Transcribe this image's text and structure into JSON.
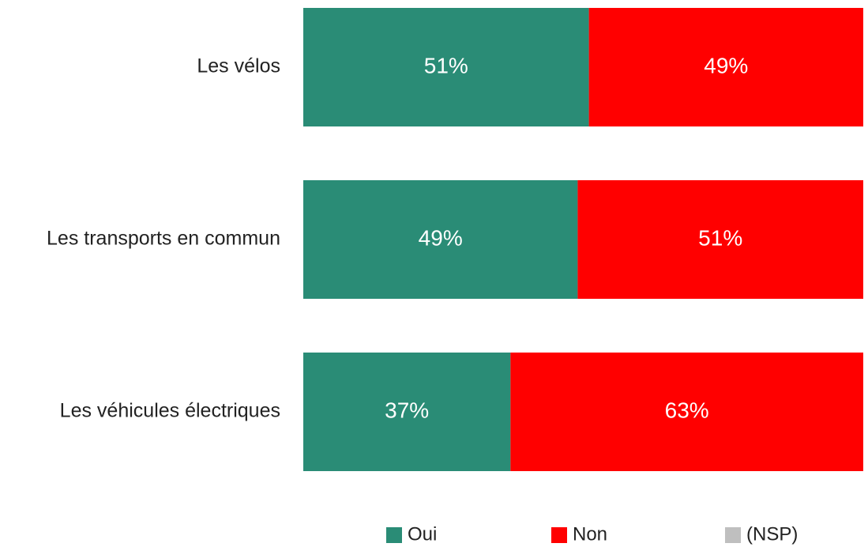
{
  "chart_data": {
    "type": "stacked-bar-horizontal",
    "categories": [
      "Les vélos",
      "Les transports en commun",
      "Les véhicules électriques"
    ],
    "series": [
      {
        "name": "Oui",
        "color": "#2a8c76",
        "values": [
          51,
          49,
          37
        ],
        "value_labels": [
          "51%",
          "49%",
          "37%"
        ]
      },
      {
        "name": "Non",
        "color": "#ff0000",
        "values": [
          49,
          51,
          63
        ],
        "value_labels": [
          "49%",
          "51%",
          "63%"
        ]
      },
      {
        "name": "(NSP)",
        "color": "#bfbfbf",
        "values": [
          0,
          0,
          0
        ]
      }
    ],
    "xlim": [
      0,
      100
    ],
    "legend": "bottom"
  }
}
